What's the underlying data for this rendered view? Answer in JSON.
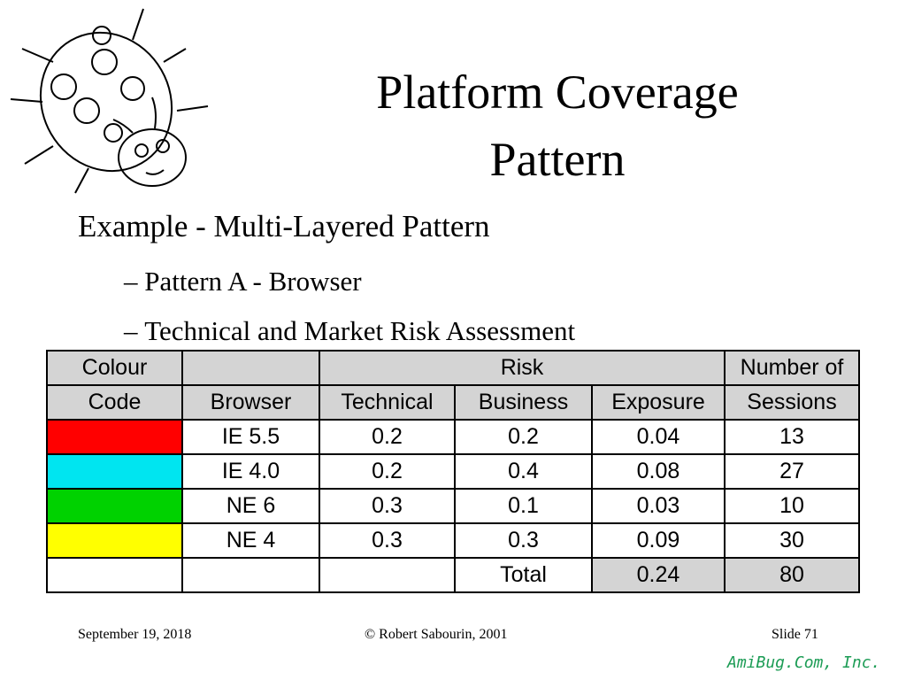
{
  "title": "Platform Coverage Pattern",
  "bullets": {
    "main": "Example - Multi-Layered Pattern",
    "sub": [
      "Pattern A - Browser",
      "Technical and Market Risk Assessment"
    ]
  },
  "table": {
    "header": {
      "colour_code": [
        "Colour",
        "Code"
      ],
      "browser": "Browser",
      "risk": "Risk",
      "risk_columns": [
        "Technical",
        "Business",
        "Exposure"
      ],
      "sessions": [
        "Number of",
        "Sessions"
      ]
    },
    "rows": [
      {
        "color": "#ff0000",
        "browser": "IE 5.5",
        "technical": 0.2,
        "business": 0.2,
        "exposure": 0.04,
        "sessions": 13
      },
      {
        "color": "#00e5f0",
        "browser": "IE 4.0",
        "technical": 0.2,
        "business": 0.4,
        "exposure": 0.08,
        "sessions": 27
      },
      {
        "color": "#00d200",
        "browser": "NE 6",
        "technical": 0.3,
        "business": 0.1,
        "exposure": 0.03,
        "sessions": 10
      },
      {
        "color": "#ffff00",
        "browser": "NE 4",
        "technical": 0.3,
        "business": 0.3,
        "exposure": 0.09,
        "sessions": 30
      }
    ],
    "total": {
      "label": "Total",
      "exposure": 0.24,
      "sessions": 80
    }
  },
  "footer": {
    "date": "September 19, 2018",
    "copyright": "© Robert Sabourin, 2001",
    "slide": "Slide 71",
    "brand": "AmiBug.Com, Inc."
  }
}
